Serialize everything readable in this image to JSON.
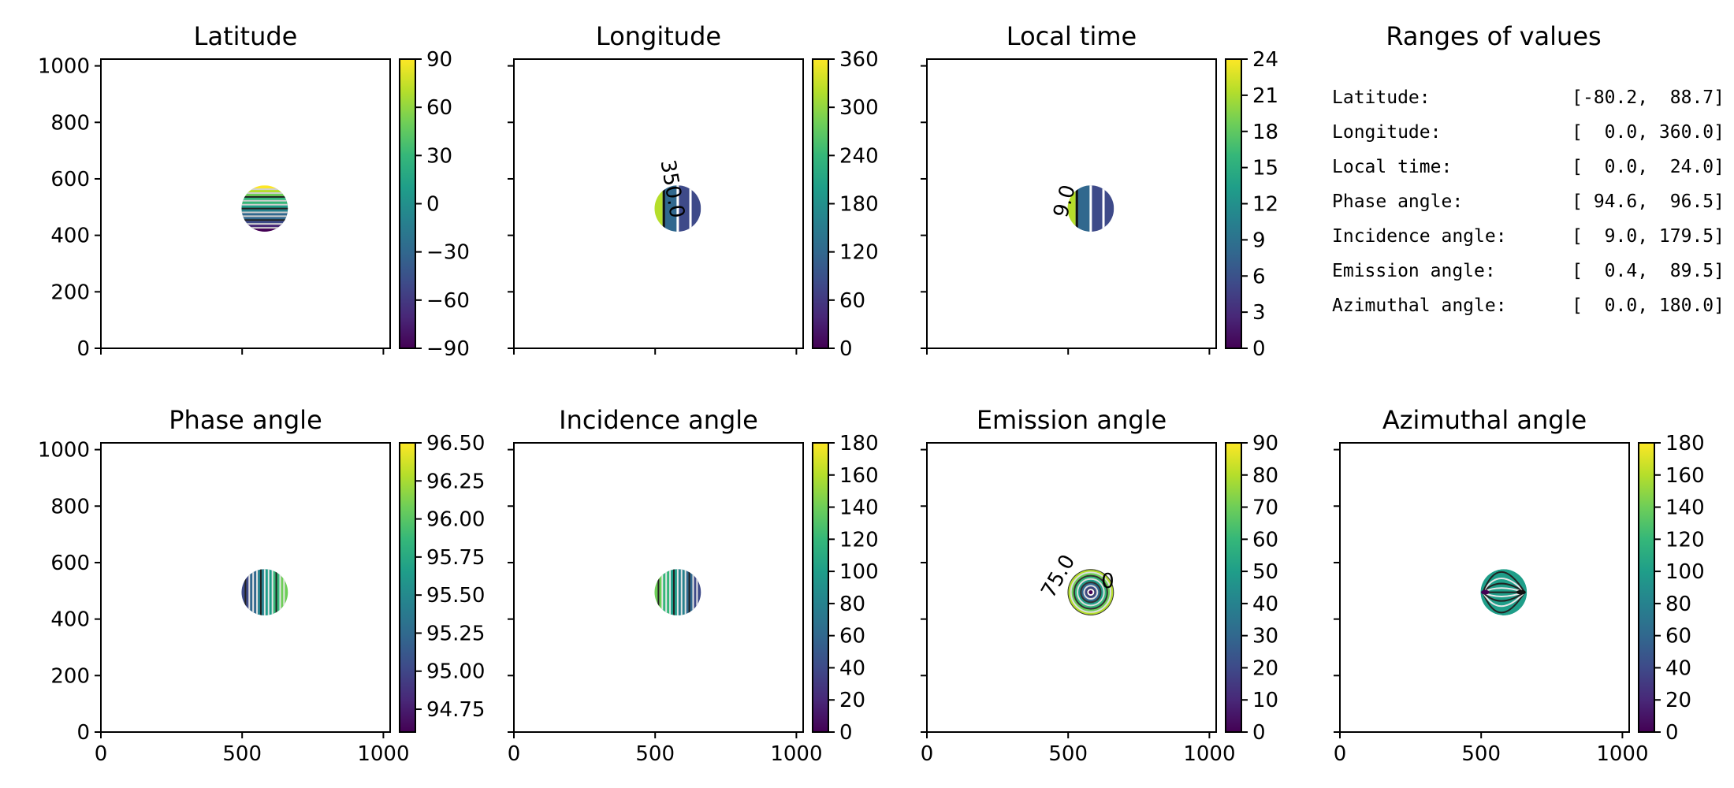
{
  "chart_data": [
    {
      "type": "heatmap",
      "title": "Latitude",
      "xlim": [
        0,
        1024
      ],
      "ylim": [
        0,
        1024
      ],
      "xticks": [
        0,
        500,
        1000
      ],
      "yticks": [
        0,
        200,
        400,
        600,
        800,
        1000
      ],
      "show_xticklabels": false,
      "show_yticklabels": true,
      "colorbar": {
        "min": -90,
        "max": 90,
        "ticks": [
          "90",
          "60",
          "30",
          "0",
          "−30",
          "−60",
          "−90"
        ]
      },
      "disk": {
        "center": [
          580,
          495
        ],
        "radius": 82
      },
      "pattern": "lat",
      "contour_labels": []
    },
    {
      "type": "heatmap",
      "title": "Longitude",
      "xlim": [
        0,
        1024
      ],
      "ylim": [
        0,
        1024
      ],
      "xticks": [
        0,
        500,
        1000
      ],
      "yticks": [
        0,
        200,
        400,
        600,
        800,
        1000
      ],
      "show_xticklabels": false,
      "show_yticklabels": false,
      "colorbar": {
        "min": 0,
        "max": 360,
        "ticks": [
          "360",
          "300",
          "240",
          "180",
          "120",
          "60",
          "0"
        ]
      },
      "disk": {
        "center": [
          580,
          495
        ],
        "radius": 82
      },
      "pattern": "lon",
      "contour_labels": [
        {
          "text": "350.0",
          "x": 538,
          "y": 560,
          "rotate": 80,
          "color": "#111111"
        }
      ]
    },
    {
      "type": "heatmap",
      "title": "Local time",
      "xlim": [
        0,
        1024
      ],
      "ylim": [
        0,
        1024
      ],
      "xticks": [
        0,
        500,
        1000
      ],
      "yticks": [
        0,
        200,
        400,
        600,
        800,
        1000
      ],
      "show_xticklabels": false,
      "show_yticklabels": false,
      "colorbar": {
        "min": 0,
        "max": 24,
        "ticks": [
          "24",
          "21",
          "18",
          "15",
          "12",
          "9",
          "6",
          "3",
          "0"
        ]
      },
      "disk": {
        "center": [
          580,
          495
        ],
        "radius": 82
      },
      "pattern": "lon",
      "contour_labels": [
        {
          "text": "9.0",
          "x": 510,
          "y": 515,
          "rotate": -75,
          "color": "#bbbbbb"
        }
      ]
    },
    {
      "type": "heatmap",
      "title": "Phase angle",
      "xlim": [
        0,
        1024
      ],
      "ylim": [
        0,
        1024
      ],
      "xticks": [
        0,
        500,
        1000
      ],
      "yticks": [
        0,
        200,
        400,
        600,
        800,
        1000
      ],
      "show_xticklabels": true,
      "show_yticklabels": true,
      "colorbar": {
        "min": 94.6,
        "max": 96.5,
        "ticks": [
          "96.50",
          "96.25",
          "96.00",
          "95.75",
          "95.50",
          "95.25",
          "95.00",
          "94.75"
        ]
      },
      "disk": {
        "center": [
          580,
          495
        ],
        "radius": 82
      },
      "pattern": "vstripes",
      "contour_labels": []
    },
    {
      "type": "heatmap",
      "title": "Incidence angle",
      "xlim": [
        0,
        1024
      ],
      "ylim": [
        0,
        1024
      ],
      "xticks": [
        0,
        500,
        1000
      ],
      "yticks": [
        0,
        200,
        400,
        600,
        800,
        1000
      ],
      "show_xticklabels": true,
      "show_yticklabels": false,
      "colorbar": {
        "min": 0,
        "max": 180,
        "ticks": [
          "180",
          "160",
          "140",
          "120",
          "100",
          "80",
          "60",
          "40",
          "20",
          "0"
        ]
      },
      "disk": {
        "center": [
          580,
          495
        ],
        "radius": 82
      },
      "pattern": "vstripes2",
      "contour_labels": []
    },
    {
      "type": "heatmap",
      "title": "Emission angle",
      "xlim": [
        0,
        1024
      ],
      "ylim": [
        0,
        1024
      ],
      "xticks": [
        0,
        500,
        1000
      ],
      "yticks": [
        0,
        200,
        400,
        600,
        800,
        1000
      ],
      "show_xticklabels": true,
      "show_yticklabels": false,
      "colorbar": {
        "min": 0,
        "max": 90,
        "ticks": [
          "90",
          "80",
          "70",
          "60",
          "50",
          "40",
          "30",
          "20",
          "10",
          "0"
        ]
      },
      "disk": {
        "center": [
          580,
          495
        ],
        "radius": 82
      },
      "pattern": "rings",
      "contour_labels": [
        {
          "text": "75.0",
          "x": 485,
          "y": 540,
          "rotate": -60,
          "color": "#333333"
        },
        {
          "text": "0",
          "x": 640,
          "y": 510,
          "rotate": 0,
          "color": "#999999"
        }
      ]
    },
    {
      "type": "heatmap",
      "title": "Azimuthal angle",
      "xlim": [
        0,
        1024
      ],
      "ylim": [
        0,
        1024
      ],
      "xticks": [
        0,
        500,
        1000
      ],
      "yticks": [
        0,
        200,
        400,
        600,
        800,
        1000
      ],
      "show_xticklabels": true,
      "show_yticklabels": false,
      "colorbar": {
        "min": 0,
        "max": 180,
        "ticks": [
          "180",
          "160",
          "140",
          "120",
          "100",
          "80",
          "60",
          "40",
          "20",
          "0"
        ]
      },
      "disk": {
        "center": [
          580,
          495
        ],
        "radius": 82
      },
      "pattern": "azimuth",
      "contour_labels": []
    }
  ],
  "ranges_panel": {
    "title": "Ranges of values",
    "rows": [
      {
        "label": "Latitude:",
        "value": "[-80.2,  88.7]"
      },
      {
        "label": "Longitude:",
        "value": "[  0.0, 360.0]"
      },
      {
        "label": "Local time:",
        "value": "[  0.0,  24.0]"
      },
      {
        "label": "Phase angle:",
        "value": "[ 94.6,  96.5]"
      },
      {
        "label": "Incidence angle:",
        "value": "[  9.0, 179.5]"
      },
      {
        "label": "Emission angle:",
        "value": "[  0.4,  89.5]"
      },
      {
        "label": "Azimuthal angle:",
        "value": "[  0.0, 180.0]"
      }
    ]
  },
  "colormap": [
    "#440154",
    "#482878",
    "#3e4a89",
    "#31688e",
    "#26828e",
    "#1f9e89",
    "#35b779",
    "#6ece58",
    "#b5de2b",
    "#fde725"
  ]
}
